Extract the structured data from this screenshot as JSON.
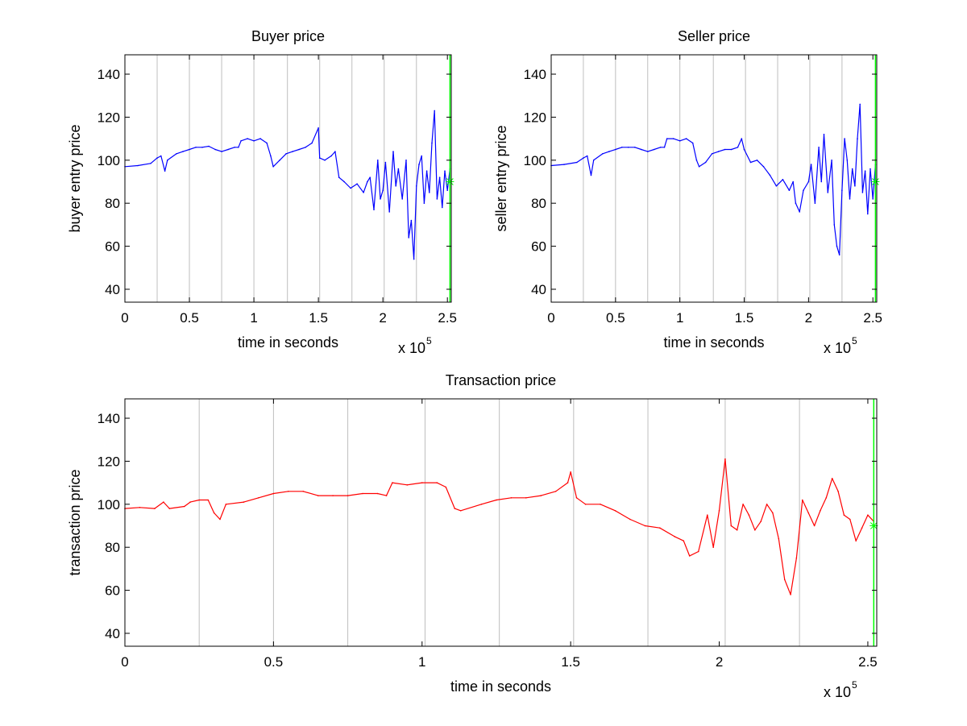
{
  "figure": {
    "background": "#ffffff",
    "axis_color": "#000000",
    "grid_color": "#bebebe",
    "marker_color": "#00ff00"
  },
  "chart_data": [
    {
      "id": "buyer",
      "type": "line",
      "title": "Buyer price",
      "xlabel": "time in seconds",
      "ylabel": "buyer entry price",
      "x_multiplier_base": "x 10",
      "x_multiplier_exp": "5",
      "xlim": [
        0,
        2.53
      ],
      "ylim": [
        34,
        149
      ],
      "xticks": [
        0,
        0.5,
        1,
        1.5,
        2,
        2.5
      ],
      "xtick_labels": [
        "0",
        "0.5",
        "1",
        "1.5",
        "2",
        "2.5"
      ],
      "yticks": [
        40,
        60,
        80,
        100,
        120,
        140
      ],
      "ytick_labels": [
        "40",
        "60",
        "80",
        "100",
        "120",
        "140"
      ],
      "vgrid_x": [
        0.25,
        0.5,
        0.75,
        1.0,
        1.26,
        1.51,
        1.76,
        2.01,
        2.26
      ],
      "end_line_x": 2.52,
      "end_marker": {
        "x": 2.52,
        "y": 90,
        "symbol": "*"
      },
      "series": [
        {
          "color": "#0000ff",
          "points": [
            [
              0,
              97
            ],
            [
              0.1,
              97.5
            ],
            [
              0.2,
              98.5
            ],
            [
              0.25,
              101
            ],
            [
              0.28,
              102
            ],
            [
              0.31,
              95
            ],
            [
              0.33,
              100
            ],
            [
              0.4,
              103
            ],
            [
              0.45,
              104
            ],
            [
              0.5,
              105
            ],
            [
              0.55,
              106
            ],
            [
              0.6,
              106
            ],
            [
              0.65,
              106.5
            ],
            [
              0.7,
              105
            ],
            [
              0.75,
              104
            ],
            [
              0.8,
              105
            ],
            [
              0.85,
              106
            ],
            [
              0.88,
              106
            ],
            [
              0.9,
              109
            ],
            [
              0.95,
              110
            ],
            [
              1.0,
              109
            ],
            [
              1.05,
              110
            ],
            [
              1.1,
              108
            ],
            [
              1.13,
              102
            ],
            [
              1.15,
              97
            ],
            [
              1.2,
              100
            ],
            [
              1.25,
              103
            ],
            [
              1.3,
              104
            ],
            [
              1.35,
              105
            ],
            [
              1.4,
              106
            ],
            [
              1.45,
              108
            ],
            [
              1.5,
              115
            ],
            [
              1.51,
              101
            ],
            [
              1.55,
              100
            ],
            [
              1.6,
              102
            ],
            [
              1.63,
              104
            ],
            [
              1.66,
              92
            ],
            [
              1.7,
              90
            ],
            [
              1.75,
              87
            ],
            [
              1.8,
              89
            ],
            [
              1.85,
              85
            ],
            [
              1.88,
              90
            ],
            [
              1.9,
              92
            ],
            [
              1.93,
              77
            ],
            [
              1.96,
              100
            ],
            [
              1.98,
              82
            ],
            [
              2.0,
              86
            ],
            [
              2.02,
              99
            ],
            [
              2.05,
              76
            ],
            [
              2.08,
              104
            ],
            [
              2.1,
              88
            ],
            [
              2.12,
              96
            ],
            [
              2.15,
              82
            ],
            [
              2.18,
              100
            ],
            [
              2.2,
              64
            ],
            [
              2.22,
              72
            ],
            [
              2.24,
              54
            ],
            [
              2.26,
              88
            ],
            [
              2.28,
              98
            ],
            [
              2.3,
              102
            ],
            [
              2.32,
              80
            ],
            [
              2.34,
              95
            ],
            [
              2.36,
              85
            ],
            [
              2.38,
              108
            ],
            [
              2.4,
              123
            ],
            [
              2.42,
              82
            ],
            [
              2.44,
              92
            ],
            [
              2.46,
              78
            ],
            [
              2.48,
              95
            ],
            [
              2.5,
              86
            ],
            [
              2.52,
              96
            ]
          ]
        }
      ]
    },
    {
      "id": "seller",
      "type": "line",
      "title": "Seller price",
      "xlabel": "time in seconds",
      "ylabel": "seller entry price",
      "x_multiplier_base": "x 10",
      "x_multiplier_exp": "5",
      "xlim": [
        0,
        2.53
      ],
      "ylim": [
        34,
        149
      ],
      "xticks": [
        0,
        0.5,
        1,
        1.5,
        2,
        2.5
      ],
      "xtick_labels": [
        "0",
        "0.5",
        "1",
        "1.5",
        "2",
        "2.5"
      ],
      "yticks": [
        40,
        60,
        80,
        100,
        120,
        140
      ],
      "ytick_labels": [
        "40",
        "60",
        "80",
        "100",
        "120",
        "140"
      ],
      "vgrid_x": [
        0.25,
        0.5,
        0.75,
        1.0,
        1.26,
        1.51,
        1.76,
        2.01,
        2.26
      ],
      "end_line_x": 2.52,
      "end_marker": {
        "x": 2.52,
        "y": 90,
        "symbol": "*"
      },
      "series": [
        {
          "color": "#0000ff",
          "points": [
            [
              0,
              97.5
            ],
            [
              0.1,
              98
            ],
            [
              0.2,
              99
            ],
            [
              0.25,
              101
            ],
            [
              0.28,
              102
            ],
            [
              0.31,
              93
            ],
            [
              0.33,
              100
            ],
            [
              0.4,
              103
            ],
            [
              0.45,
              104
            ],
            [
              0.5,
              105
            ],
            [
              0.55,
              106
            ],
            [
              0.6,
              106
            ],
            [
              0.65,
              106
            ],
            [
              0.7,
              105
            ],
            [
              0.75,
              104
            ],
            [
              0.8,
              105
            ],
            [
              0.85,
              106
            ],
            [
              0.88,
              106
            ],
            [
              0.9,
              110
            ],
            [
              0.95,
              110
            ],
            [
              1.0,
              109
            ],
            [
              1.05,
              110
            ],
            [
              1.1,
              108
            ],
            [
              1.13,
              100
            ],
            [
              1.15,
              97
            ],
            [
              1.2,
              99
            ],
            [
              1.25,
              103
            ],
            [
              1.3,
              104
            ],
            [
              1.35,
              105
            ],
            [
              1.4,
              105
            ],
            [
              1.45,
              106
            ],
            [
              1.48,
              110
            ],
            [
              1.5,
              105
            ],
            [
              1.55,
              99
            ],
            [
              1.6,
              100
            ],
            [
              1.65,
              97
            ],
            [
              1.7,
              93
            ],
            [
              1.75,
              88
            ],
            [
              1.8,
              91
            ],
            [
              1.85,
              86
            ],
            [
              1.88,
              90
            ],
            [
              1.9,
              80
            ],
            [
              1.93,
              76
            ],
            [
              1.96,
              86
            ],
            [
              2.0,
              90
            ],
            [
              2.02,
              98
            ],
            [
              2.05,
              80
            ],
            [
              2.08,
              106
            ],
            [
              2.1,
              90
            ],
            [
              2.12,
              112
            ],
            [
              2.15,
              85
            ],
            [
              2.18,
              100
            ],
            [
              2.2,
              70
            ],
            [
              2.22,
              60
            ],
            [
              2.24,
              56
            ],
            [
              2.26,
              86
            ],
            [
              2.28,
              110
            ],
            [
              2.3,
              100
            ],
            [
              2.32,
              82
            ],
            [
              2.34,
              96
            ],
            [
              2.36,
              88
            ],
            [
              2.38,
              110
            ],
            [
              2.4,
              126
            ],
            [
              2.42,
              85
            ],
            [
              2.44,
              95
            ],
            [
              2.46,
              75
            ],
            [
              2.48,
              96
            ],
            [
              2.5,
              82
            ],
            [
              2.52,
              98
            ]
          ]
        }
      ]
    },
    {
      "id": "transaction",
      "type": "line",
      "title": "Transaction price",
      "xlabel": "time in seconds",
      "ylabel": "transaction price",
      "x_multiplier_base": "x 10",
      "x_multiplier_exp": "5",
      "xlim": [
        0,
        2.53
      ],
      "ylim": [
        34,
        149
      ],
      "xticks": [
        0,
        0.5,
        1,
        1.5,
        2,
        2.5
      ],
      "xtick_labels": [
        "0",
        "0.5",
        "1",
        "1.5",
        "2",
        "2.5"
      ],
      "yticks": [
        40,
        60,
        80,
        100,
        120,
        140
      ],
      "ytick_labels": [
        "40",
        "60",
        "80",
        "100",
        "120",
        "140"
      ],
      "vgrid_x": [
        0.25,
        0.5,
        0.75,
        1.01,
        1.26,
        1.51,
        1.76,
        2.02,
        2.27
      ],
      "end_line_x": 2.52,
      "end_marker": {
        "x": 2.52,
        "y": 90,
        "symbol": "*"
      },
      "series": [
        {
          "color": "#ff0000",
          "points": [
            [
              0,
              98
            ],
            [
              0.05,
              98.5
            ],
            [
              0.1,
              98
            ],
            [
              0.13,
              101
            ],
            [
              0.15,
              98
            ],
            [
              0.2,
              99
            ],
            [
              0.22,
              101
            ],
            [
              0.25,
              102
            ],
            [
              0.28,
              102
            ],
            [
              0.3,
              96
            ],
            [
              0.32,
              93
            ],
            [
              0.34,
              100
            ],
            [
              0.4,
              101
            ],
            [
              0.45,
              103
            ],
            [
              0.5,
              105
            ],
            [
              0.55,
              106
            ],
            [
              0.6,
              106
            ],
            [
              0.65,
              104
            ],
            [
              0.7,
              104
            ],
            [
              0.75,
              104
            ],
            [
              0.8,
              105
            ],
            [
              0.85,
              105
            ],
            [
              0.88,
              104
            ],
            [
              0.9,
              110
            ],
            [
              0.95,
              109
            ],
            [
              1.0,
              110
            ],
            [
              1.05,
              110
            ],
            [
              1.08,
              108
            ],
            [
              1.11,
              98
            ],
            [
              1.13,
              97
            ],
            [
              1.2,
              100
            ],
            [
              1.25,
              102
            ],
            [
              1.3,
              103
            ],
            [
              1.35,
              103
            ],
            [
              1.4,
              104
            ],
            [
              1.45,
              106
            ],
            [
              1.49,
              110
            ],
            [
              1.5,
              115
            ],
            [
              1.52,
              103
            ],
            [
              1.55,
              100
            ],
            [
              1.6,
              100
            ],
            [
              1.65,
              97
            ],
            [
              1.7,
              93
            ],
            [
              1.75,
              90
            ],
            [
              1.8,
              89
            ],
            [
              1.85,
              85
            ],
            [
              1.88,
              83
            ],
            [
              1.9,
              76
            ],
            [
              1.93,
              78
            ],
            [
              1.96,
              95
            ],
            [
              1.98,
              80
            ],
            [
              2.0,
              97
            ],
            [
              2.02,
              121
            ],
            [
              2.04,
              90
            ],
            [
              2.06,
              88
            ],
            [
              2.08,
              100
            ],
            [
              2.1,
              95
            ],
            [
              2.12,
              88
            ],
            [
              2.14,
              92
            ],
            [
              2.16,
              100
            ],
            [
              2.18,
              96
            ],
            [
              2.2,
              84
            ],
            [
              2.22,
              65
            ],
            [
              2.24,
              58
            ],
            [
              2.26,
              75
            ],
            [
              2.28,
              102
            ],
            [
              2.3,
              96
            ],
            [
              2.32,
              90
            ],
            [
              2.34,
              97
            ],
            [
              2.36,
              103
            ],
            [
              2.38,
              112
            ],
            [
              2.4,
              106
            ],
            [
              2.42,
              95
            ],
            [
              2.44,
              93
            ],
            [
              2.46,
              83
            ],
            [
              2.48,
              89
            ],
            [
              2.5,
              95
            ],
            [
              2.52,
              92
            ]
          ]
        }
      ]
    }
  ]
}
